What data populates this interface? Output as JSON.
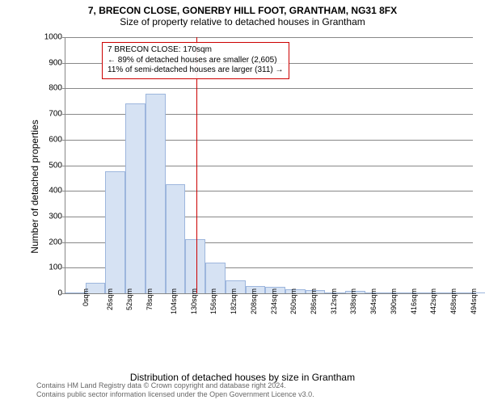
{
  "title": "7, BRECON CLOSE, GONERBY HILL FOOT, GRANTHAM, NG31 8FX",
  "subtitle": "Size of property relative to detached houses in Grantham",
  "ylabel": "Number of detached properties",
  "xlabel": "Distribution of detached houses by size in Grantham",
  "footer_line1": "Contains HM Land Registry data © Crown copyright and database right 2024.",
  "footer_line2": "Contains public sector information licensed under the Open Government Licence v3.0.",
  "chart": {
    "type": "histogram",
    "background_color": "#ffffff",
    "grid_color": "#888888",
    "bar_fill": "#d6e2f3",
    "bar_stroke": "#9db6dd",
    "marker_color": "#cc0000",
    "ylim": [
      0,
      1000
    ],
    "ytick_step": 100,
    "x_min": 0,
    "x_max": 530,
    "bin_width": 26,
    "xtick_step": 26,
    "xtick_suffix": "sqm",
    "marker_x": 170,
    "marker_label_line1": "7 BRECON CLOSE: 170sqm",
    "marker_label_line2": "← 89% of detached houses are smaller (2,605)",
    "marker_label_line3": "11% of semi-detached houses are larger (311) →",
    "bins": [
      {
        "x": 0,
        "count": 0
      },
      {
        "x": 26,
        "count": 40
      },
      {
        "x": 52,
        "count": 475
      },
      {
        "x": 78,
        "count": 740
      },
      {
        "x": 104,
        "count": 780
      },
      {
        "x": 130,
        "count": 425
      },
      {
        "x": 156,
        "count": 210
      },
      {
        "x": 182,
        "count": 120
      },
      {
        "x": 208,
        "count": 50
      },
      {
        "x": 234,
        "count": 30
      },
      {
        "x": 260,
        "count": 25
      },
      {
        "x": 286,
        "count": 15
      },
      {
        "x": 312,
        "count": 12
      },
      {
        "x": 338,
        "count": 3
      },
      {
        "x": 364,
        "count": 8
      },
      {
        "x": 390,
        "count": 2
      },
      {
        "x": 416,
        "count": 2
      },
      {
        "x": 442,
        "count": 0
      },
      {
        "x": 468,
        "count": 0
      },
      {
        "x": 494,
        "count": 0
      },
      {
        "x": 520,
        "count": 0
      }
    ]
  }
}
